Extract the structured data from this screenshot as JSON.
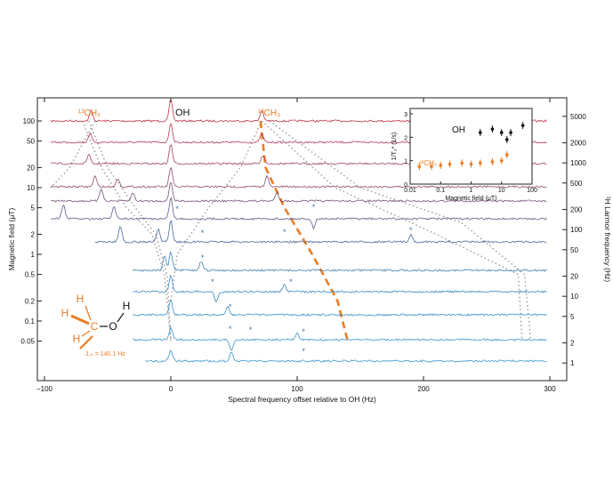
{
  "chart_data": {
    "type": "line",
    "title": "",
    "xlabel": "Spectral frequency offset relative to OH (Hz)",
    "ylabel": "Magnetic field  (μT)",
    "ylabel_right": "¹H Larmor frequency (Hz)",
    "xlim": [
      -100,
      305
    ],
    "x_ticks": [
      -100,
      0,
      100,
      200,
      300
    ],
    "y_ticks_left": [
      "100",
      "50",
      "20",
      "10",
      "5",
      "2",
      "1",
      "0.5",
      "0.2",
      "0.1",
      "0.05"
    ],
    "y_ticks_right": [
      "5000",
      "2000",
      "1000",
      "500",
      "200",
      "100",
      "50",
      "20",
      "10",
      "5",
      "2",
      "1"
    ],
    "y_scale": "log",
    "peak_labels": {
      "oh": "OH",
      "ch2_left": "¹³CH₂",
      "ch2_right": "¹³CH₃"
    },
    "series": [
      {
        "field_uT": 100,
        "color": "#c0344b",
        "peaks": [
          {
            "x": -63,
            "h": 12
          },
          {
            "x": 0,
            "h": 24
          },
          {
            "x": 72,
            "h": 12
          }
        ]
      },
      {
        "field_uT": 50,
        "color": "#b53c56",
        "peaks": [
          {
            "x": -64,
            "h": 10
          },
          {
            "x": 0,
            "h": 22
          },
          {
            "x": 72,
            "h": 10
          }
        ]
      },
      {
        "field_uT": 20,
        "color": "#a24663",
        "peaks": [
          {
            "x": -65,
            "h": 10
          },
          {
            "x": 0,
            "h": 22
          },
          {
            "x": 73,
            "h": 10
          }
        ]
      },
      {
        "field_uT": 10,
        "color": "#8c4e6e",
        "peaks": [
          {
            "x": -60,
            "h": 12
          },
          {
            "x": -42,
            "h": 9
          },
          {
            "x": 0,
            "h": 22
          },
          {
            "x": 76,
            "h": 12
          }
        ]
      },
      {
        "field_uT": 5,
        "color": "#755479",
        "peaks": [
          {
            "x": -55,
            "h": 14
          },
          {
            "x": -30,
            "h": 9
          },
          {
            "x": 0,
            "h": 22
          },
          {
            "x": 84,
            "h": 10
          }
        ]
      },
      {
        "field_uT": 2,
        "color": "#5d5b86",
        "peaks": [
          {
            "x": -85,
            "h": 16
          },
          {
            "x": -45,
            "h": 14
          },
          {
            "x": 0,
            "h": 24
          },
          {
            "x": 113,
            "h": -10
          }
        ]
      },
      {
        "field_uT": 1,
        "color": "#4b6a9a",
        "peaks": [
          {
            "x": -40,
            "h": 18
          },
          {
            "x": -10,
            "h": 14
          },
          {
            "x": 0,
            "h": 24
          },
          {
            "x": 190,
            "h": 8
          }
        ]
      },
      {
        "field_uT": 0.5,
        "color": "#3f7fb2",
        "peaks": [
          {
            "x": -5,
            "h": 16
          },
          {
            "x": 0,
            "h": 20
          },
          {
            "x": 24,
            "h": 10
          }
        ]
      },
      {
        "field_uT": 0.2,
        "color": "#3a8ac0",
        "peaks": [
          {
            "x": 0,
            "h": 18
          },
          {
            "x": 36,
            "h": -12
          },
          {
            "x": 90,
            "h": 8
          }
        ]
      },
      {
        "field_uT": 0.1,
        "color": "#3892c9",
        "peaks": [
          {
            "x": 0,
            "h": 16
          },
          {
            "x": 45,
            "h": 10
          }
        ]
      },
      {
        "field_uT": 0.05,
        "color": "#3a96cc",
        "peaks": [
          {
            "x": 0,
            "h": 14
          },
          {
            "x": 48,
            "h": -12
          },
          {
            "x": 100,
            "h": 8
          }
        ]
      },
      {
        "field_uT": 0.02,
        "color": "#3d99cf",
        "peaks": [
          {
            "x": 0,
            "h": 12
          },
          {
            "x": 48,
            "h": 10
          }
        ]
      }
    ],
    "guide_curve_13C": {
      "color": "#ec7c22",
      "points": [
        [
          71,
          100
        ],
        [
          75,
          20
        ],
        [
          90,
          5
        ],
        [
          112,
          1
        ],
        [
          132,
          0.2
        ],
        [
          140,
          0.05
        ]
      ]
    },
    "molecule": {
      "j_label": "J꜀ₕ = 140.1 Hz"
    },
    "inset": {
      "type": "scatter",
      "xlabel": "Magnetic field (μT)",
      "ylabel": "1/T₂* (1/s)",
      "x_scale": "log",
      "xlim": [
        0.01,
        100
      ],
      "ylim": [
        0,
        3
      ],
      "x_ticks": [
        "0.01",
        "0.1",
        "1",
        "10",
        "100"
      ],
      "y_ticks": [
        "0",
        "1",
        "2",
        "3"
      ],
      "series": [
        {
          "name": "OH",
          "color": "#111111",
          "points": [
            [
              2,
              2.2
            ],
            [
              5,
              2.35
            ],
            [
              10,
              2.2
            ],
            [
              15,
              1.9
            ],
            [
              20,
              2.2
            ],
            [
              50,
              2.5
            ]
          ]
        },
        {
          "name": "¹³CH₂",
          "color": "#ec7c22",
          "points": [
            [
              0.02,
              0.75
            ],
            [
              0.05,
              0.75
            ],
            [
              0.1,
              0.8
            ],
            [
              0.2,
              0.85
            ],
            [
              0.5,
              0.9
            ],
            [
              1,
              0.85
            ],
            [
              2,
              0.9
            ],
            [
              5,
              0.95
            ],
            [
              10,
              1.0
            ],
            [
              15,
              1.25
            ]
          ]
        }
      ]
    }
  }
}
